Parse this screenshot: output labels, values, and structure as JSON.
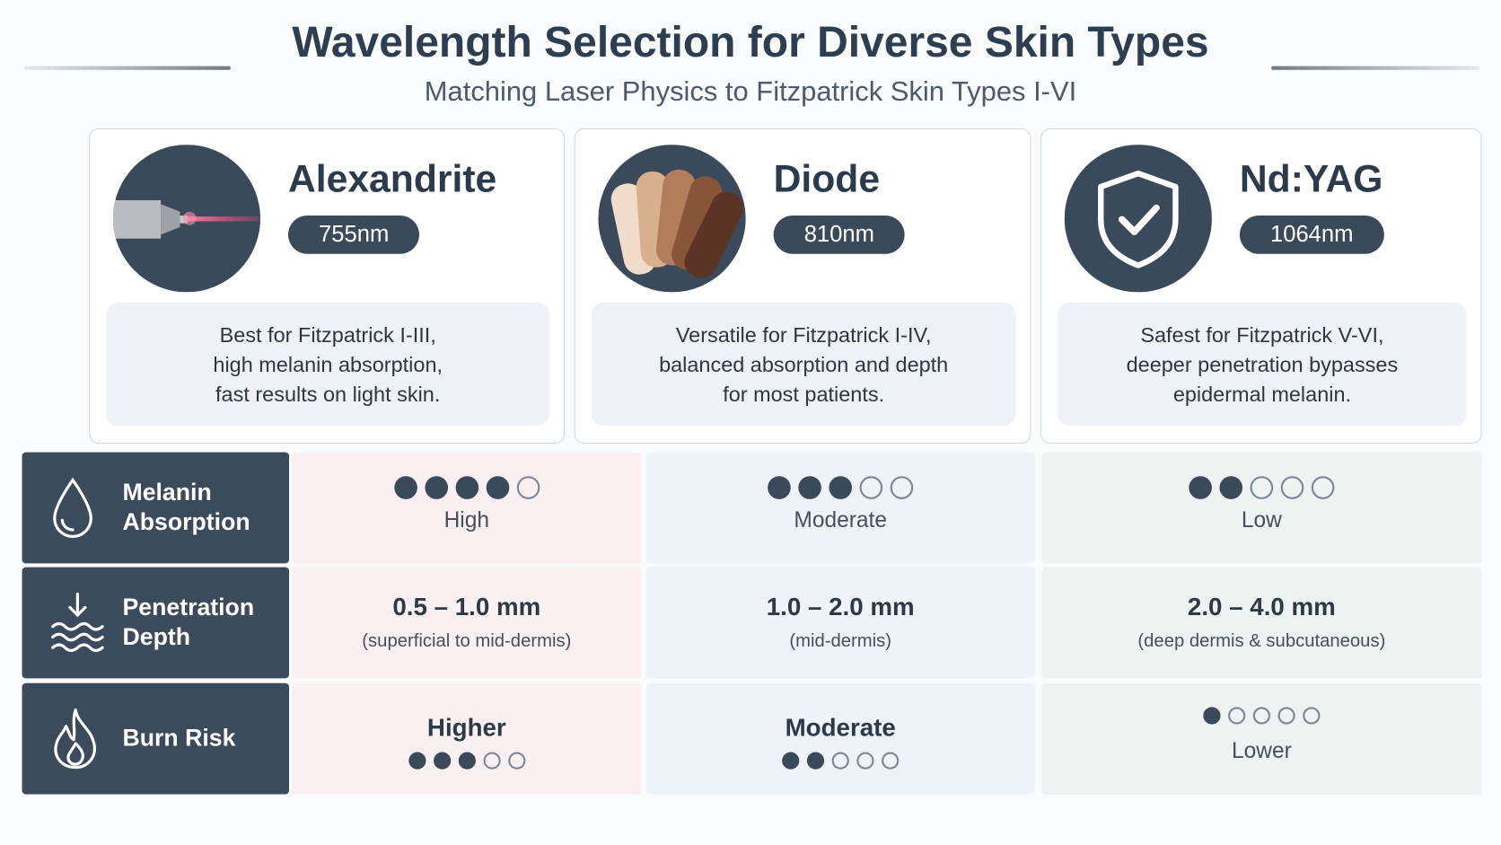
{
  "header": {
    "title": "Wavelength Selection for Diverse Skin Types",
    "subtitle": "Matching Laser Physics to Fitzpatrick Skin Types I-VI"
  },
  "lasers": [
    {
      "name": "Alexandrite",
      "wavelength": "755nm",
      "description": [
        "Best for Fitzpatrick I-III,",
        "high melanin absorption,",
        "fast results on light skin."
      ]
    },
    {
      "name": "Diode",
      "wavelength": "810nm",
      "description": [
        "Versatile for Fitzpatrick I-IV,",
        "balanced absorption and depth",
        "for most patients."
      ]
    },
    {
      "name": "Nd:YAG",
      "wavelength": "1064nm",
      "description": [
        "Safest for Fitzpatrick V-VI,",
        "deeper penetration bypasses",
        "epidermal melanin."
      ]
    }
  ],
  "table": {
    "rows": [
      {
        "label": [
          "Melanin",
          "Absorption"
        ],
        "cells": [
          {
            "dots_filled": 4,
            "dots_total": 5,
            "label": "High"
          },
          {
            "dots_filled": 3,
            "dots_total": 5,
            "label": "Moderate"
          },
          {
            "dots_filled": 2,
            "dots_total": 5,
            "label": "Low"
          }
        ]
      },
      {
        "label": [
          "Penetration",
          "Depth"
        ],
        "cells": [
          {
            "value": "0.5 – 1.0 mm",
            "note": "(superficial to mid-dermis)"
          },
          {
            "value": "1.0 – 2.0 mm",
            "note": "(mid-dermis)"
          },
          {
            "value": "2.0 – 4.0 mm",
            "note": "(deep dermis & subcutaneous)"
          }
        ]
      },
      {
        "label": [
          "Burn Risk"
        ],
        "cells": [
          {
            "label": "Higher",
            "dots_filled": 3,
            "dots_total": 5
          },
          {
            "label": "Moderate",
            "dots_filled": 2,
            "dots_total": 5
          },
          {
            "dots_filled": 1,
            "dots_total": 5,
            "label": "Lower"
          }
        ]
      }
    ]
  }
}
